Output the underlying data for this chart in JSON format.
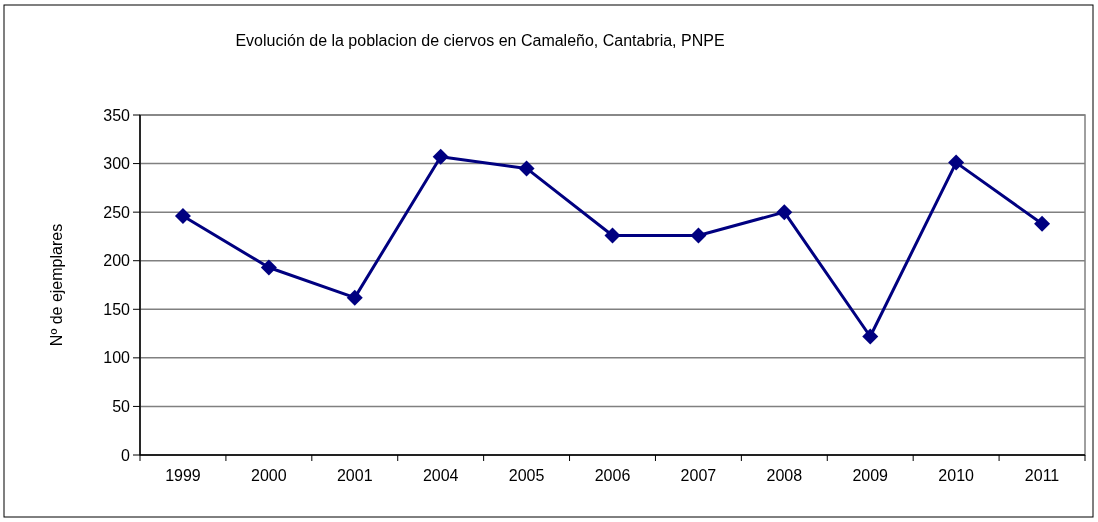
{
  "chart_data": {
    "type": "line",
    "title": "Evolución de la poblacion de ciervos en Camaleño, Cantabria, PNPE",
    "ylabel": "Nº de ejemplares",
    "categories": [
      "1999",
      "2000",
      "2001",
      "2004",
      "2005",
      "2006",
      "2007",
      "2008",
      "2009",
      "2010",
      "2011"
    ],
    "series": [
      {
        "color": "#000080",
        "values": [
          246,
          193,
          162,
          307,
          295,
          226,
          226,
          250,
          122,
          301,
          238
        ]
      }
    ],
    "ylim": [
      0,
      350
    ],
    "yticks": [
      0,
      50,
      100,
      150,
      200,
      250,
      300,
      350
    ],
    "grid": "y",
    "marker": "diamond",
    "line_style": "solid"
  }
}
